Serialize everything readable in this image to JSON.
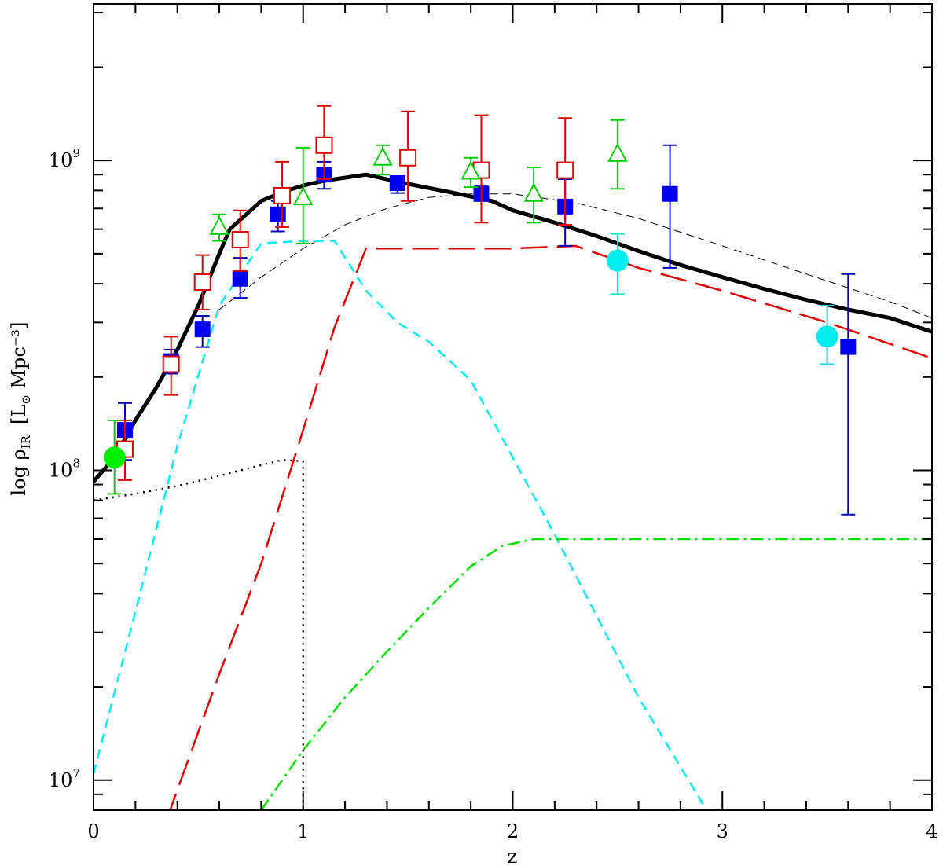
{
  "chart_data": {
    "type": "line",
    "xlabel": "z",
    "ylabel": {
      "main": "log ρ",
      "sub": "IR",
      "unit": "[L",
      "unit_sub": "⊙",
      "unit_rest": " Mpc⁻³]"
    },
    "xlim": [
      0,
      4
    ],
    "ylim": [
      8000000.0,
      3200000000.0
    ],
    "yscale": "log",
    "x_ticks": [
      {
        "value": 0,
        "label": "0"
      },
      {
        "value": 1,
        "label": "1"
      },
      {
        "value": 2,
        "label": "2"
      },
      {
        "value": 3,
        "label": "3"
      },
      {
        "value": 4,
        "label": "4"
      }
    ],
    "y_ticks": [
      {
        "value": 10000000.0,
        "base": "10",
        "exp": "7"
      },
      {
        "value": 100000000.0,
        "base": "10",
        "exp": "8"
      },
      {
        "value": 1000000000.0,
        "base": "10",
        "exp": "9"
      }
    ],
    "grid": false,
    "lines": [
      {
        "color": "#000000",
        "dash": "",
        "width": 5,
        "x": [
          0,
          0.1,
          0.2,
          0.3,
          0.4,
          0.5,
          0.6,
          0.65,
          0.8,
          0.9,
          1.0,
          1.1,
          1.3,
          1.5,
          1.7,
          1.9,
          2.0,
          2.2,
          2.4,
          2.6,
          2.8,
          3.0,
          3.2,
          3.4,
          3.6,
          3.8,
          4.0
        ],
        "y": [
          92000000.0,
          110000000.0,
          145000000.0,
          185000000.0,
          245000000.0,
          340000000.0,
          500000000.0,
          600000000.0,
          740000000.0,
          790000000.0,
          830000000.0,
          860000000.0,
          900000000.0,
          840000000.0,
          790000000.0,
          740000000.0,
          690000000.0,
          630000000.0,
          570000000.0,
          510000000.0,
          460000000.0,
          420000000.0,
          385000000.0,
          355000000.0,
          330000000.0,
          310000000.0,
          280000000.0
        ]
      },
      {
        "color": "#000000",
        "dash": "10,6",
        "width": 1,
        "x": [
          0.6,
          0.8,
          1.0,
          1.2,
          1.4,
          1.6,
          1.8,
          2.0,
          2.3,
          2.6,
          3.0,
          3.4,
          3.8,
          4.0
        ],
        "y": [
          330000000.0,
          420000000.0,
          520000000.0,
          620000000.0,
          700000000.0,
          760000000.0,
          780000000.0,
          780000000.0,
          730000000.0,
          650000000.0,
          530000000.0,
          430000000.0,
          350000000.0,
          310000000.0
        ]
      },
      {
        "color": "#00eeee",
        "dash": "12,8",
        "width": 2.5,
        "x": [
          0,
          0.2,
          0.4,
          0.6,
          0.8,
          1.0,
          1.15,
          1.3,
          1.45,
          1.6,
          1.8,
          2.2,
          2.6,
          2.95
        ],
        "y": [
          10500000.0,
          35000000.0,
          120000000.0,
          340000000.0,
          540000000.0,
          550000000.0,
          550000000.0,
          380000000.0,
          300000000.0,
          260000000.0,
          195000000.0,
          62000000.0,
          18500000.0,
          7500000.0
        ]
      },
      {
        "color": "#e00000",
        "dash": "34,12",
        "width": 2.5,
        "x": [
          0.35,
          0.6,
          0.8,
          1.0,
          1.15,
          1.3,
          1.6,
          2.0,
          2.3,
          2.6,
          3.0,
          3.5,
          4.0
        ],
        "y": [
          7500000.0,
          22000000.0,
          50000000.0,
          135000000.0,
          290000000.0,
          520000000.0,
          520000000.0,
          520000000.0,
          530000000.0,
          450000000.0,
          380000000.0,
          300000000.0,
          230000000.0
        ]
      },
      {
        "color": "#00dd00",
        "dash": "16,6,3,6",
        "width": 2.5,
        "x": [
          0.8,
          1.0,
          1.2,
          1.4,
          1.6,
          1.8,
          1.95,
          2.1,
          2.5,
          3.0,
          3.5,
          4.0
        ],
        "y": [
          8000000.0,
          12500000.0,
          18500000.0,
          26000000.0,
          36000000.0,
          49000000.0,
          57000000.0,
          60000000.0,
          60000000.0,
          60000000.0,
          60000000.0,
          60000000.0
        ]
      },
      {
        "color": "#000000",
        "dash": "2,6",
        "width": 2.5,
        "x": [
          0,
          0.2,
          0.4,
          0.6,
          0.8,
          0.9,
          1.0,
          1.0
        ],
        "y": [
          80000000.0,
          84000000.0,
          89000000.0,
          96000000.0,
          104000000.0,
          108000000.0,
          107000000.0,
          8000000.0
        ]
      }
    ],
    "series": [
      {
        "marker": "filled-square",
        "color": "#0000ee",
        "errcolor": "#0000bb",
        "points": [
          {
            "x": 0.15,
            "y": 135000000.0,
            "lo": 108000000.0,
            "hi": 165000000.0
          },
          {
            "x": 0.37,
            "y": 225000000.0,
            "lo": 205000000.0,
            "hi": 245000000.0
          },
          {
            "x": 0.52,
            "y": 285000000.0,
            "lo": 250000000.0,
            "hi": 315000000.0
          },
          {
            "x": 0.7,
            "y": 415000000.0,
            "lo": 360000000.0,
            "hi": 485000000.0
          },
          {
            "x": 0.88,
            "y": 670000000.0,
            "lo": 590000000.0,
            "hi": 740000000.0
          },
          {
            "x": 1.1,
            "y": 900000000.0,
            "lo": 810000000.0,
            "hi": 990000000.0
          },
          {
            "x": 1.45,
            "y": 845000000.0,
            "lo": 785000000.0,
            "hi": 885000000.0
          },
          {
            "x": 1.85,
            "y": 780000000.0,
            "lo": 740000000.0,
            "hi": 825000000.0
          },
          {
            "x": 2.25,
            "y": 710000000.0,
            "lo": 530000000.0,
            "hi": 870000000.0
          },
          {
            "x": 2.75,
            "y": 780000000.0,
            "lo": 450000000.0,
            "hi": 1120000000.0
          },
          {
            "x": 3.6,
            "y": 250000000.0,
            "lo": 72000000.0,
            "hi": 430000000.0
          }
        ]
      },
      {
        "marker": "open-square",
        "color": "#dd0000",
        "errcolor": "#dd0000",
        "points": [
          {
            "x": 0.15,
            "y": 117000000.0,
            "lo": 93000000.0,
            "hi": 145000000.0
          },
          {
            "x": 0.37,
            "y": 220000000.0,
            "lo": 175000000.0,
            "hi": 270000000.0
          },
          {
            "x": 0.52,
            "y": 405000000.0,
            "lo": 330000000.0,
            "hi": 495000000.0
          },
          {
            "x": 0.7,
            "y": 555000000.0,
            "lo": 440000000.0,
            "hi": 690000000.0
          },
          {
            "x": 0.9,
            "y": 770000000.0,
            "lo": 610000000.0,
            "hi": 990000000.0
          },
          {
            "x": 1.1,
            "y": 1120000000.0,
            "lo": 870000000.0,
            "hi": 1500000000.0
          },
          {
            "x": 1.5,
            "y": 1020000000.0,
            "lo": 740000000.0,
            "hi": 1440000000.0
          },
          {
            "x": 1.85,
            "y": 930000000.0,
            "lo": 630000000.0,
            "hi": 1400000000.0
          },
          {
            "x": 2.25,
            "y": 930000000.0,
            "lo": 620000000.0,
            "hi": 1370000000.0
          }
        ]
      },
      {
        "marker": "open-triangle",
        "color": "#00cc00",
        "errcolor": "#00cc00",
        "points": [
          {
            "x": 0.6,
            "y": 610000000.0,
            "lo": 550000000.0,
            "hi": 670000000.0
          },
          {
            "x": 1.0,
            "y": 760000000.0,
            "lo": 540000000.0,
            "hi": 1100000000.0
          },
          {
            "x": 1.38,
            "y": 1020000000.0,
            "lo": 900000000.0,
            "hi": 1120000000.0
          },
          {
            "x": 1.8,
            "y": 920000000.0,
            "lo": 820000000.0,
            "hi": 1020000000.0
          },
          {
            "x": 2.1,
            "y": 780000000.0,
            "lo": 630000000.0,
            "hi": 950000000.0
          },
          {
            "x": 2.5,
            "y": 1050000000.0,
            "lo": 810000000.0,
            "hi": 1350000000.0
          }
        ]
      },
      {
        "marker": "filled-circle",
        "color": "#00ee00",
        "errcolor": "#00cc00",
        "points": [
          {
            "x": 0.1,
            "y": 110000000.0,
            "lo": 84000000.0,
            "hi": 145000000.0
          }
        ]
      },
      {
        "marker": "filled-circle",
        "color": "#00eeee",
        "errcolor": "#00dddd",
        "points": [
          {
            "x": 2.5,
            "y": 475000000.0,
            "lo": 370000000.0,
            "hi": 580000000.0
          },
          {
            "x": 3.5,
            "y": 270000000.0,
            "lo": 220000000.0,
            "hi": 340000000.0
          }
        ]
      }
    ]
  }
}
